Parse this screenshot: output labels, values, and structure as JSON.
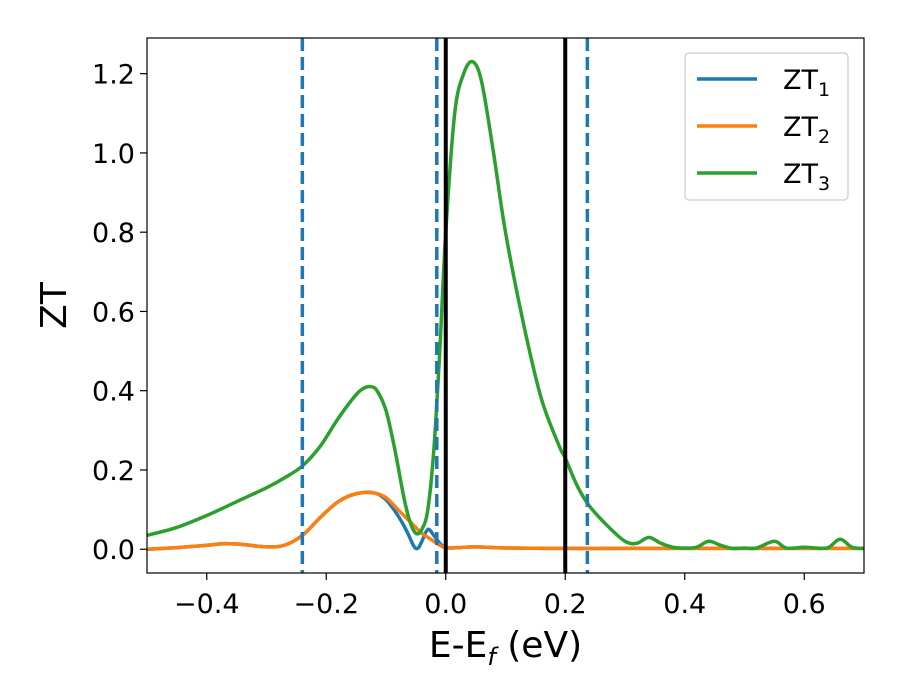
{
  "chart_data": {
    "type": "line",
    "title": "",
    "xlabel": {
      "main": "E-E",
      "sub": "f",
      "suffix": " (eV)"
    },
    "ylabel": "ZT",
    "xlim": [
      -0.5,
      0.7
    ],
    "ylim": [
      -0.06,
      1.29
    ],
    "xticks": [
      -0.4,
      -0.2,
      0.0,
      0.2,
      0.4,
      0.6
    ],
    "xtick_labels": [
      "−0.4",
      "−0.2",
      "0.0",
      "0.2",
      "0.4",
      "0.6"
    ],
    "yticks": [
      0.0,
      0.2,
      0.4,
      0.6,
      0.8,
      1.0,
      1.2
    ],
    "ytick_labels": [
      "0.0",
      "0.2",
      "0.4",
      "0.6",
      "0.8",
      "1.0",
      "1.2"
    ],
    "grid": false,
    "legend_position": "top-right",
    "vertical_lines": [
      {
        "x": -0.24,
        "style": "dashed",
        "color": "#1f77b4"
      },
      {
        "x": -0.015,
        "style": "dashed",
        "color": "#1f77b4"
      },
      {
        "x": 0.237,
        "style": "dashed",
        "color": "#1f77b4"
      },
      {
        "x": 0.0,
        "style": "solid",
        "color": "#000000"
      },
      {
        "x": 0.2,
        "style": "solid",
        "color": "#000000"
      }
    ],
    "series": [
      {
        "name": "ZT",
        "sub": "1",
        "color": "#1f77b4",
        "x": [
          -0.5,
          -0.45,
          -0.4,
          -0.37,
          -0.34,
          -0.3,
          -0.27,
          -0.24,
          -0.21,
          -0.18,
          -0.15,
          -0.12,
          -0.1,
          -0.08,
          -0.065,
          -0.055,
          -0.05,
          -0.045,
          -0.04,
          -0.03,
          -0.02,
          -0.01,
          0.0,
          0.02,
          0.05,
          0.1,
          0.2,
          0.3,
          0.4,
          0.5,
          0.6,
          0.7
        ],
        "y": [
          0.0,
          0.004,
          0.01,
          0.014,
          0.012,
          0.006,
          0.01,
          0.035,
          0.08,
          0.12,
          0.14,
          0.142,
          0.125,
          0.085,
          0.045,
          0.012,
          0.002,
          0.005,
          0.02,
          0.05,
          0.035,
          0.015,
          0.004,
          0.004,
          0.006,
          0.003,
          0.002,
          0.002,
          0.002,
          0.002,
          0.002,
          0.002
        ]
      },
      {
        "name": "ZT",
        "sub": "2",
        "color": "#ff7f0e",
        "x": [
          -0.5,
          -0.45,
          -0.4,
          -0.37,
          -0.34,
          -0.3,
          -0.27,
          -0.24,
          -0.21,
          -0.18,
          -0.15,
          -0.12,
          -0.1,
          -0.08,
          -0.06,
          -0.04,
          -0.03,
          -0.02,
          -0.01,
          0.0,
          0.02,
          0.05,
          0.1,
          0.2,
          0.3,
          0.4,
          0.5,
          0.6,
          0.7
        ],
        "y": [
          0.0,
          0.004,
          0.01,
          0.014,
          0.012,
          0.006,
          0.01,
          0.035,
          0.08,
          0.12,
          0.14,
          0.142,
          0.13,
          0.1,
          0.07,
          0.04,
          0.03,
          0.02,
          0.01,
          0.004,
          0.004,
          0.006,
          0.003,
          0.002,
          0.002,
          0.002,
          0.002,
          0.002,
          0.002
        ]
      },
      {
        "name": "ZT",
        "sub": "3",
        "color": "#2ca02c",
        "x": [
          -0.5,
          -0.45,
          -0.4,
          -0.35,
          -0.3,
          -0.27,
          -0.24,
          -0.21,
          -0.18,
          -0.15,
          -0.135,
          -0.125,
          -0.115,
          -0.1,
          -0.085,
          -0.07,
          -0.06,
          -0.05,
          -0.04,
          -0.03,
          -0.02,
          -0.01,
          0.0,
          0.015,
          0.03,
          0.045,
          0.06,
          0.08,
          0.1,
          0.13,
          0.16,
          0.19,
          0.2,
          0.22,
          0.24,
          0.27,
          0.3,
          0.32,
          0.34,
          0.36,
          0.38,
          0.4,
          0.42,
          0.44,
          0.46,
          0.48,
          0.5,
          0.52,
          0.55,
          0.57,
          0.6,
          0.62,
          0.64,
          0.66,
          0.68,
          0.7
        ],
        "y": [
          0.035,
          0.055,
          0.085,
          0.12,
          0.155,
          0.18,
          0.21,
          0.26,
          0.33,
          0.39,
          0.408,
          0.41,
          0.4,
          0.35,
          0.25,
          0.13,
          0.07,
          0.04,
          0.05,
          0.1,
          0.25,
          0.5,
          0.8,
          1.1,
          1.2,
          1.23,
          1.18,
          1.0,
          0.8,
          0.57,
          0.38,
          0.26,
          0.23,
          0.16,
          0.11,
          0.06,
          0.02,
          0.015,
          0.03,
          0.015,
          0.005,
          0.003,
          0.005,
          0.02,
          0.01,
          0.002,
          0.003,
          0.003,
          0.02,
          0.003,
          0.005,
          0.003,
          0.004,
          0.025,
          0.005,
          0.002
        ]
      }
    ]
  }
}
